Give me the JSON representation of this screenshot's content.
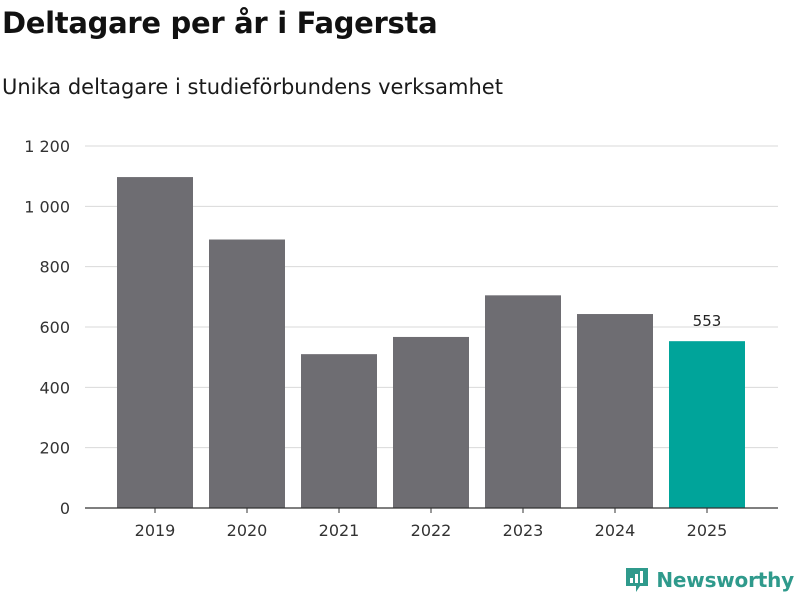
{
  "brand": {
    "name": "Newsworthy",
    "logo_color": "#2f9a8c"
  },
  "colors": {
    "bar_default": "#6e6d72",
    "bar_highlight": "#00a49a",
    "gridline": "#d9d9d9",
    "axis": "#333333"
  },
  "chart_data": {
    "type": "bar",
    "title": "Deltagare per år i Fagersta",
    "subtitle": "Unika deltagare i studieförbundens verksamhet",
    "xlabel": "",
    "ylabel": "",
    "categories": [
      "2019",
      "2020",
      "2021",
      "2022",
      "2023",
      "2024",
      "2025"
    ],
    "values": [
      1097,
      890,
      510,
      567,
      705,
      643,
      553
    ],
    "highlight_index": 6,
    "data_labels": [
      {
        "index": 6,
        "text": "553"
      }
    ],
    "ylim": [
      0,
      1200
    ],
    "yticks": [
      0,
      200,
      400,
      600,
      800,
      1000,
      1200
    ],
    "ytick_labels": [
      "0",
      "200",
      "400",
      "600",
      "800",
      "1 000",
      "1 200"
    ],
    "grid": true,
    "legend": "none"
  }
}
